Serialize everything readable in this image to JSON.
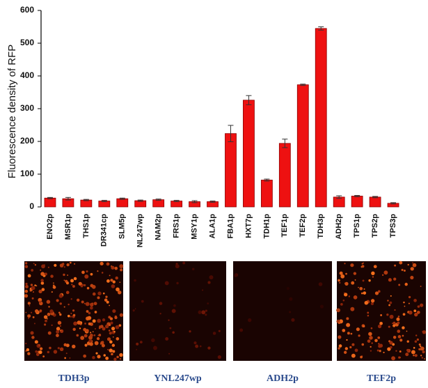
{
  "chart_data": {
    "type": "bar",
    "y_label": "Fluorescence density of RFP",
    "categories": [
      "ENO2p",
      "MSR1p",
      "THS1p",
      "DR341cp",
      "SLM5p",
      "NL247wp",
      "NAM2p",
      "FRS1p",
      "MSY1p",
      "ALA1p",
      "FBA1p",
      "HXT7p",
      "TDH1p",
      "TEF1p",
      "TEF2p",
      "TDH3p",
      "ADH2p",
      "TPS1p",
      "TPS2p",
      "TPS3p"
    ],
    "values": [
      27,
      25,
      21,
      18,
      25,
      19,
      22,
      18,
      16,
      16,
      224,
      326,
      82,
      194,
      373,
      545,
      30,
      33,
      30,
      11
    ],
    "errors": [
      2,
      4,
      2,
      2,
      2,
      2,
      2,
      2,
      3,
      2,
      25,
      14,
      3,
      13,
      2,
      5,
      4,
      2,
      2,
      2
    ],
    "color": "#ee1111",
    "ylim": [
      0,
      600
    ],
    "yticks": [
      0,
      100,
      200,
      300,
      400,
      500,
      600
    ],
    "grid": false
  },
  "panels": [
    {
      "caption": "TDH3p"
    },
    {
      "caption": "YNL247wp"
    },
    {
      "caption": "ADH2p"
    },
    {
      "caption": "TEF2p"
    }
  ]
}
